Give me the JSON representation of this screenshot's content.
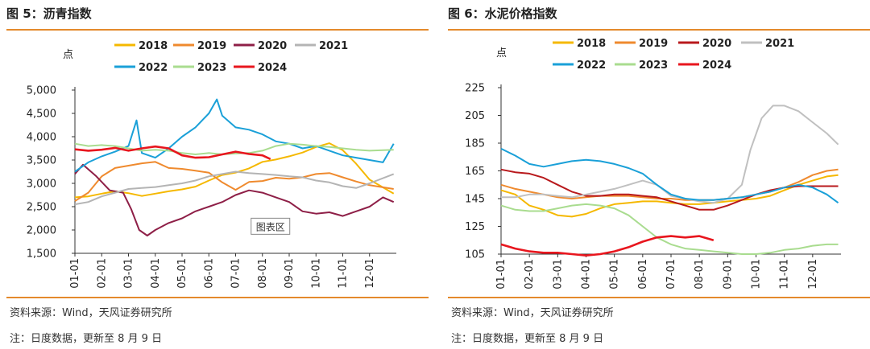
{
  "chart_data": [
    {
      "type": "line",
      "title": "图 5：沥青指数",
      "unit": "点",
      "ylim": [
        1500,
        5000
      ],
      "yticks": [
        "1,500",
        "2,000",
        "2,500",
        "3,000",
        "3,500",
        "4,000",
        "4,500",
        "5,000"
      ],
      "ytick_values": [
        1500,
        2000,
        2500,
        3000,
        3500,
        4000,
        4500,
        5000
      ],
      "x_ticks": [
        "01-01",
        "02-01",
        "03-01",
        "04-01",
        "05-01",
        "06-01",
        "07-01",
        "08-01",
        "09-01",
        "10-01",
        "11-01",
        "12-01"
      ],
      "x_months": [
        1,
        2,
        3,
        4,
        5,
        6,
        7,
        8,
        9,
        10,
        11,
        12
      ],
      "annotation": "图表区",
      "annotation_at": [
        8.3,
        2080
      ],
      "series": [
        {
          "name": "2018",
          "color": "#f5b800",
          "x": [
            1,
            1.5,
            2,
            2.5,
            3,
            3.5,
            4,
            4.5,
            5,
            5.5,
            6,
            6.5,
            7,
            7.5,
            8,
            8.5,
            9,
            9.5,
            10,
            10.5,
            11,
            11.5,
            12,
            12.9
          ],
          "values": [
            2700,
            2720,
            2780,
            2830,
            2790,
            2730,
            2780,
            2830,
            2870,
            2930,
            3060,
            3180,
            3230,
            3320,
            3460,
            3510,
            3580,
            3660,
            3780,
            3860,
            3710,
            3420,
            3080,
            2780
          ]
        },
        {
          "name": "2019",
          "color": "#ef8a2e",
          "x": [
            1,
            1.5,
            2,
            2.5,
            3,
            3.5,
            4,
            4.5,
            5,
            5.5,
            6,
            6.5,
            7,
            7.5,
            8,
            8.5,
            9,
            9.5,
            10,
            10.5,
            11,
            11.5,
            12,
            12.9
          ],
          "values": [
            2620,
            2800,
            3150,
            3330,
            3380,
            3430,
            3460,
            3330,
            3310,
            3270,
            3230,
            3020,
            2860,
            3030,
            3050,
            3120,
            3100,
            3130,
            3200,
            3220,
            3130,
            3040,
            2960,
            2880
          ]
        },
        {
          "name": "2020",
          "color": "#8e1f47",
          "x": [
            1,
            1.3,
            1.8,
            2.3,
            2.8,
            3.1,
            3.4,
            3.7,
            4,
            4.5,
            5,
            5.5,
            6,
            6.5,
            7,
            7.5,
            8,
            8.5,
            9,
            9.5,
            10,
            10.5,
            11,
            11.5,
            12,
            12.5,
            12.9
          ],
          "values": [
            3200,
            3400,
            3150,
            2850,
            2800,
            2450,
            2000,
            1880,
            2000,
            2150,
            2250,
            2400,
            2500,
            2600,
            2750,
            2850,
            2800,
            2700,
            2600,
            2400,
            2350,
            2380,
            2300,
            2400,
            2500,
            2700,
            2600
          ]
        },
        {
          "name": "2021",
          "color": "#b4b4b4",
          "x": [
            1,
            1.5,
            2,
            2.5,
            3,
            3.5,
            4,
            4.5,
            5,
            5.5,
            6,
            6.5,
            7,
            7.5,
            8,
            8.5,
            9,
            9.5,
            10,
            10.5,
            11,
            11.5,
            12,
            12.9
          ],
          "values": [
            2550,
            2600,
            2720,
            2800,
            2880,
            2900,
            2920,
            2960,
            3000,
            3060,
            3150,
            3200,
            3250,
            3220,
            3200,
            3180,
            3150,
            3130,
            3060,
            3020,
            2940,
            2900,
            3000,
            3200
          ]
        },
        {
          "name": "2022",
          "color": "#1aa0d8",
          "x": [
            1,
            1.5,
            2,
            2.5,
            3,
            3.3,
            3.5,
            4,
            4.5,
            5,
            5.5,
            6,
            6.3,
            6.5,
            7,
            7.5,
            8,
            8.5,
            9,
            9.5,
            10,
            10.5,
            11,
            11.5,
            12,
            12.5,
            12.9
          ],
          "values": [
            3250,
            3450,
            3580,
            3680,
            3800,
            4350,
            3650,
            3550,
            3750,
            4000,
            4200,
            4500,
            4800,
            4450,
            4200,
            4150,
            4050,
            3900,
            3850,
            3750,
            3800,
            3700,
            3600,
            3550,
            3500,
            3450,
            3850
          ]
        },
        {
          "name": "2023",
          "color": "#a9dc8f",
          "x": [
            1,
            1.5,
            2,
            2.5,
            3,
            3.5,
            4,
            4.5,
            5,
            5.5,
            6,
            6.5,
            7,
            7.5,
            8,
            8.5,
            9,
            9.5,
            10,
            10.5,
            11,
            11.5,
            12,
            12.9
          ],
          "values": [
            3850,
            3800,
            3820,
            3800,
            3750,
            3700,
            3720,
            3700,
            3650,
            3620,
            3650,
            3620,
            3640,
            3650,
            3700,
            3800,
            3850,
            3830,
            3800,
            3780,
            3750,
            3720,
            3700,
            3720
          ]
        },
        {
          "name": "2024",
          "color": "#e8161e",
          "x": [
            1,
            1.5,
            2,
            2.5,
            3,
            3.5,
            4,
            4.5,
            5,
            5.5,
            6,
            6.5,
            7,
            7.5,
            8,
            8.3
          ],
          "values": [
            3730,
            3700,
            3720,
            3760,
            3700,
            3750,
            3790,
            3750,
            3600,
            3550,
            3560,
            3620,
            3680,
            3630,
            3600,
            3520
          ]
        }
      ]
    },
    {
      "type": "line",
      "title": "图 6：水泥价格指数",
      "unit": "点",
      "ylim": [
        105,
        225
      ],
      "yticks": [
        "105",
        "125",
        "145",
        "165",
        "185",
        "205",
        "225"
      ],
      "ytick_values": [
        105,
        125,
        145,
        165,
        185,
        205,
        225
      ],
      "x_ticks": [
        "01-01",
        "02-01",
        "03-01",
        "04-01",
        "05-01",
        "06-01",
        "07-01",
        "08-01",
        "09-01",
        "10-01",
        "11-01",
        "12-01"
      ],
      "x_months": [
        1,
        2,
        3,
        4,
        5,
        6,
        7,
        8,
        9,
        10,
        11,
        12
      ],
      "series": [
        {
          "name": "2018",
          "color": "#f5b800",
          "x": [
            1,
            1.5,
            2,
            2.5,
            3,
            3.5,
            4,
            4.5,
            5,
            5.5,
            6,
            6.5,
            7,
            7.5,
            8,
            8.5,
            9,
            9.5,
            10,
            10.5,
            11,
            11.5,
            12,
            12.5,
            12.9
          ],
          "values": [
            151,
            148,
            140,
            137,
            133,
            132,
            134,
            138,
            141,
            142,
            143,
            143,
            142,
            141,
            141,
            142,
            143,
            144,
            145,
            147,
            151,
            155,
            158,
            161,
            162
          ]
        },
        {
          "name": "2019",
          "color": "#ef8a2e",
          "x": [
            1,
            1.5,
            2,
            2.5,
            3,
            3.5,
            4,
            4.5,
            5,
            5.5,
            6,
            6.5,
            7,
            7.5,
            8,
            8.5,
            9,
            9.5,
            10,
            10.5,
            11,
            11.5,
            12,
            12.5,
            12.9
          ],
          "values": [
            155,
            152,
            150,
            148,
            146,
            145,
            146,
            147,
            147,
            147,
            146,
            145,
            145,
            144,
            144,
            144,
            145,
            146,
            148,
            150,
            153,
            157,
            162,
            165,
            166
          ]
        },
        {
          "name": "2020",
          "color": "#b8191c",
          "x": [
            1,
            1.5,
            2,
            2.5,
            3,
            3.5,
            4,
            4.5,
            5,
            5.5,
            6,
            6.5,
            7,
            7.5,
            8,
            8.5,
            9,
            9.5,
            10,
            10.5,
            11,
            11.5,
            12,
            12.5,
            12.9
          ],
          "values": [
            166,
            164,
            163,
            160,
            155,
            150,
            147,
            147,
            148,
            148,
            147,
            146,
            143,
            140,
            137,
            137,
            140,
            144,
            148,
            151,
            153,
            154,
            154,
            154,
            154
          ]
        },
        {
          "name": "2021",
          "color": "#c0c0c0",
          "x": [
            1,
            1.5,
            2,
            2.5,
            3,
            3.5,
            4,
            4.5,
            5,
            5.5,
            6,
            6.5,
            7,
            7.5,
            8,
            8.5,
            9,
            9.5,
            9.8,
            10.2,
            10.6,
            11,
            11.5,
            12,
            12.5,
            12.9
          ],
          "values": [
            146,
            146,
            148,
            148,
            147,
            146,
            148,
            150,
            152,
            155,
            158,
            155,
            147,
            145,
            143,
            142,
            145,
            155,
            180,
            203,
            212,
            212,
            208,
            200,
            192,
            184
          ]
        },
        {
          "name": "2022",
          "color": "#1aa0d8",
          "x": [
            1,
            1.5,
            2,
            2.5,
            3,
            3.5,
            4,
            4.5,
            5,
            5.5,
            6,
            6.5,
            7,
            7.5,
            8,
            8.5,
            9,
            9.5,
            10,
            10.5,
            11,
            11.5,
            12,
            12.5,
            12.9
          ],
          "values": [
            181,
            176,
            170,
            168,
            170,
            172,
            173,
            172,
            170,
            167,
            163,
            155,
            148,
            145,
            144,
            144,
            145,
            146,
            148,
            150,
            153,
            155,
            153,
            148,
            142
          ]
        },
        {
          "name": "2023",
          "color": "#a9dc8f",
          "x": [
            1,
            1.5,
            2,
            2.5,
            3,
            3.5,
            4,
            4.5,
            5,
            5.5,
            6,
            6.5,
            7,
            7.5,
            8,
            8.5,
            9,
            9.5,
            10,
            10.5,
            11,
            11.5,
            12,
            12.5,
            12.9
          ],
          "values": [
            140,
            137,
            136,
            136,
            138,
            140,
            141,
            140,
            138,
            133,
            125,
            117,
            112,
            109,
            108,
            107,
            106,
            105,
            105,
            106,
            108,
            109,
            111,
            112,
            112
          ]
        },
        {
          "name": "2024",
          "color": "#e8161e",
          "x": [
            1,
            1.5,
            2,
            2.5,
            3,
            3.5,
            4,
            4.5,
            5,
            5.5,
            6,
            6.5,
            7,
            7.5,
            8,
            8.5
          ],
          "values": [
            112,
            109,
            107,
            106,
            106,
            105,
            104,
            105,
            107,
            110,
            114,
            117,
            118,
            117,
            118,
            115
          ]
        }
      ]
    }
  ],
  "footer": {
    "left_source": "资料来源：Wind，天风证券研究所",
    "left_note": "注：日度数据，更新至 8 月 9 日",
    "right_source": "资料来源：Wind，天风证券研究所",
    "right_note": "注：日度数据，更新至 8 月 9 日"
  }
}
